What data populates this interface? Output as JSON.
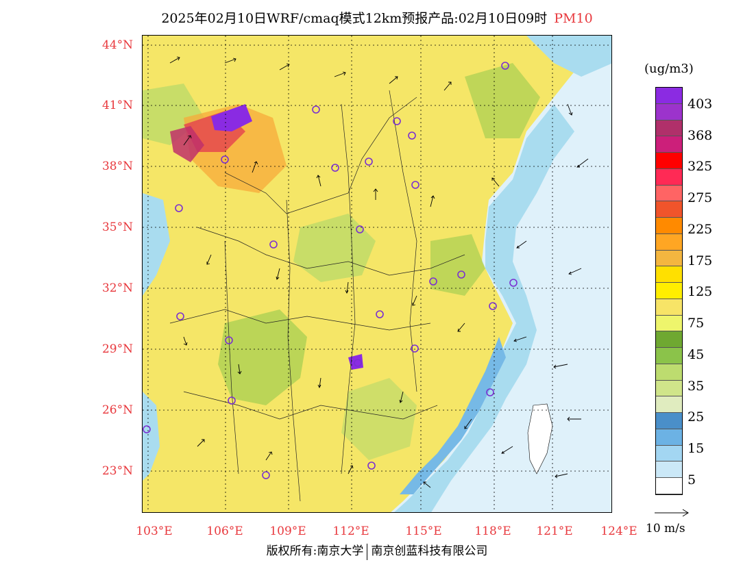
{
  "header": {
    "title": "2025年02月10日WRF/cmaq模式12km预报产品:02月10日09时",
    "variable": "PM10"
  },
  "map": {
    "latitude_labels": [
      "44°N",
      "41°N",
      "38°N",
      "35°N",
      "32°N",
      "29°N",
      "26°N",
      "23°N"
    ],
    "longitude_labels": [
      "103°E",
      "106°E",
      "109°E",
      "112°E",
      "115°E",
      "118°E",
      "121°E",
      "124°E"
    ],
    "base_colors": {
      "land_fill": "#f5e667",
      "moderate": "#eef26a",
      "low_green": "#b5d86a",
      "green": "#8ac64a",
      "light_blue": "#a9dcef",
      "mid_blue": "#76b9e6",
      "sea": "#dff1fa",
      "hotspot_orange": "#f7a93a",
      "hotspot_purple": "#8a2be2",
      "station_marker": "#7a2fd1"
    }
  },
  "legend": {
    "unit": "(ug/m3)",
    "levels": [
      "403",
      "368",
      "325",
      "275",
      "225",
      "175",
      "125",
      "75",
      "45",
      "35",
      "25",
      "15",
      "5"
    ],
    "colors": [
      "#8b2be2",
      "#9c33cc",
      "#b0306a",
      "#cc1f7a",
      "#ff0000",
      "#ff2a55",
      "#ff6464",
      "#f0542b",
      "#ff8a00",
      "#ffa623",
      "#f4b640",
      "#ffe000",
      "#ffee00",
      "#f7e467",
      "#eef56c",
      "#6fa831",
      "#8bc34a",
      "#bddc6f",
      "#d0e58a",
      "#e0ecbf",
      "#4a8fc9",
      "#6cb2e4",
      "#a3d6f2",
      "#cbe8f7",
      "#ffffff"
    ]
  },
  "wind_scale": {
    "label": "10 m/s"
  },
  "footer": {
    "owner1": "版权所有:南京大学",
    "owner2": "南京创蓝科技有限公司"
  }
}
